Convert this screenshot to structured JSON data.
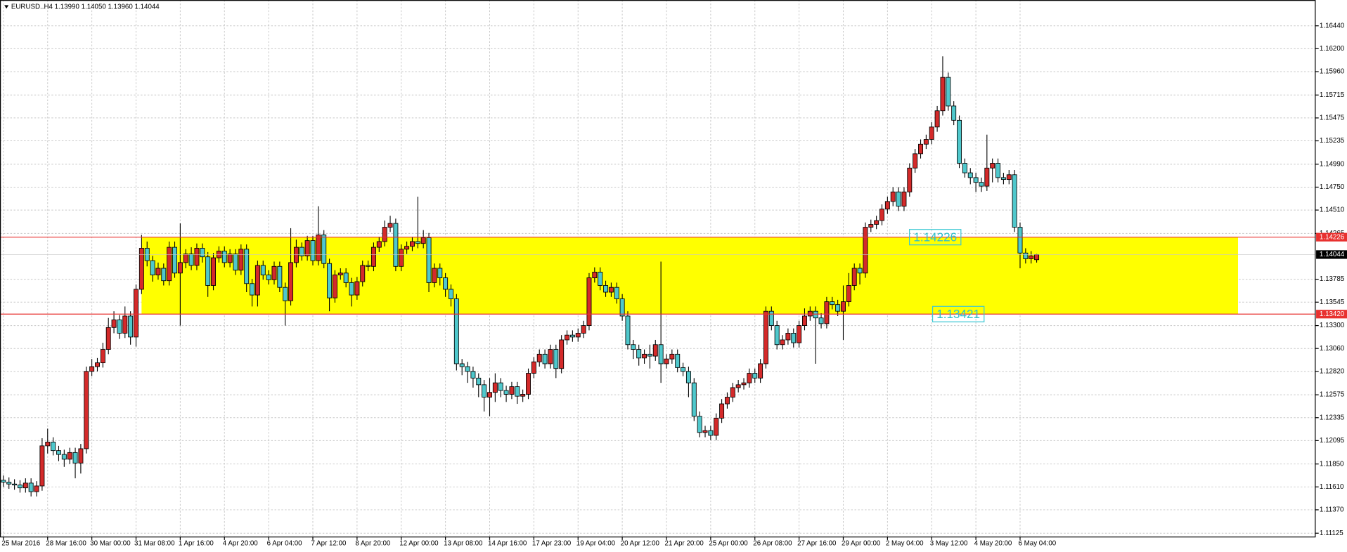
{
  "chart_data": {
    "type": "candlestick",
    "title": "EURUSD..H4  1.13990 1.14050 1.13960 1.14044",
    "up_color": "#d42a2a",
    "down_color": "#4fc8cc",
    "grid": true,
    "ylim": [
      1.1109,
      1.1671
    ],
    "yticks": [
      {
        "value": 1.1644,
        "label": "1.16440"
      },
      {
        "value": 1.162,
        "label": "1.16200"
      },
      {
        "value": 1.1596,
        "label": "1.15960"
      },
      1.15715,
      1.15475,
      1.15235,
      {
        "value": 1.1499,
        "label": "1.14990"
      },
      {
        "value": 1.1475,
        "label": "1.14750"
      },
      {
        "value": 1.1451,
        "label": "1.14510"
      },
      1.14265,
      1.13785,
      1.13545,
      {
        "value": 1.133,
        "label": "1.13300"
      },
      {
        "value": 1.1306,
        "label": "1.13060"
      },
      {
        "value": 1.1282,
        "label": "1.12820"
      },
      1.12575,
      1.12335,
      1.12095,
      {
        "value": 1.1185,
        "label": "1.11850"
      },
      {
        "value": 1.1161,
        "label": "1.11610"
      },
      {
        "value": 1.1137,
        "label": "1.11370"
      },
      1.11125
    ],
    "xticks": [
      {
        "value": 0,
        "label": "25 Mar 2016"
      },
      {
        "value": 8,
        "label": "28 Mar 16:00"
      },
      {
        "value": 16,
        "label": "30 Mar 00:00"
      },
      {
        "value": 24,
        "label": "31 Mar 08:00"
      },
      {
        "value": 32,
        "label": "1 Apr 16:00"
      },
      {
        "value": 40,
        "label": "4 Apr 20:00"
      },
      {
        "value": 48,
        "label": "6 Apr 04:00"
      },
      {
        "value": 56,
        "label": "7 Apr 12:00"
      },
      {
        "value": 64,
        "label": "8 Apr 20:00"
      },
      {
        "value": 72,
        "label": "12 Apr 00:00"
      },
      {
        "value": 80,
        "label": "13 Apr 08:00"
      },
      {
        "value": 88,
        "label": "14 Apr 16:00"
      },
      {
        "value": 96,
        "label": "17 Apr 23:00"
      },
      {
        "value": 104,
        "label": "19 Apr 04:00"
      },
      {
        "value": 112,
        "label": "20 Apr 12:00"
      },
      {
        "value": 120,
        "label": "21 Apr 20:00"
      },
      {
        "value": 128,
        "label": "25 Apr 00:00"
      },
      {
        "value": 136,
        "label": "26 Apr 08:00"
      },
      {
        "value": 144,
        "label": "27 Apr 16:00"
      },
      {
        "value": 152,
        "label": "29 Apr 00:00"
      },
      {
        "value": 160,
        "label": "2 May 04:00"
      },
      {
        "value": 168,
        "label": "3 May 12:00"
      },
      {
        "value": 176,
        "label": "4 May 20:00"
      },
      {
        "value": 184,
        "label": "6 May 04:00"
      }
    ],
    "hlines": [
      {
        "value": 1.14226,
        "label": "1.14226"
      },
      {
        "value": 1.1342,
        "label": "1.13420"
      }
    ],
    "annotations": [
      "1.14226",
      "1.13421"
    ],
    "open": [
      1.1168,
      1.1166,
      1.1164,
      1.1163,
      1.116,
      1.1165,
      1.1156,
      1.1162,
      1.1204,
      1.1208,
      1.1199,
      1.1195,
      1.119,
      1.1197,
      1.1186,
      1.1201,
      1.1282,
      1.1287,
      1.1291,
      1.1305,
      1.1328,
      1.1336,
      1.1322,
      1.134,
      1.1318,
      1.1368,
      1.1411,
      1.1398,
      1.1383,
      1.139,
      1.1377,
      1.1412,
      1.1385,
      1.1396,
      1.1405,
      1.1393,
      1.1411,
      1.1402,
      1.1372,
      1.1401,
      1.1408,
      1.1396,
      1.1405,
      1.1388,
      1.141,
      1.1374,
      1.1362,
      1.1393,
      1.1383,
      1.1378,
      1.1392,
      1.137,
      1.1356,
      1.1396,
      1.1412,
      1.1403,
      1.1419,
      1.1398,
      1.1425,
      1.1395,
      1.1359,
      1.1383,
      1.1385,
      1.1375,
      1.1362,
      1.1376,
      1.1393,
      1.1392,
      1.1412,
      1.1418,
      1.1433,
      1.1437,
      1.1392,
      1.141,
      1.1413,
      1.1418,
      1.1416,
      1.1422,
      1.1375,
      1.139,
      1.138,
      1.1368,
      1.1358,
      1.129,
      1.1287,
      1.1282,
      1.1275,
      1.1268,
      1.1255,
      1.126,
      1.127,
      1.1262,
      1.1258,
      1.1266,
      1.1256,
      1.1258,
      1.128,
      1.1292,
      1.13,
      1.129,
      1.1305,
      1.1285,
      1.1315,
      1.132,
      1.1318,
      1.1322,
      1.133,
      1.138,
      1.1386,
      1.1372,
      1.1365,
      1.137,
      1.1358,
      1.134,
      1.131,
      1.1305,
      1.1296,
      1.13,
      1.1298,
      1.131,
      1.129,
      1.1295,
      1.13,
      1.1286,
      1.1282,
      1.127,
      1.1235,
      1.1218,
      1.122,
      1.1215,
      1.1233,
      1.1248,
      1.1255,
      1.1265,
      1.1268,
      1.127,
      1.128,
      1.1275,
      1.129,
      1.1345,
      1.133,
      1.131,
      1.1315,
      1.1322,
      1.1312,
      1.133,
      1.134,
      1.1345,
      1.1338,
      1.1332,
      1.1355,
      1.1352,
      1.1345,
      1.1355,
      1.1372,
      1.139,
      1.1385,
      1.1433,
      1.1436,
      1.144,
      1.1452,
      1.146,
      1.147,
      1.1455,
      1.147,
      1.1495,
      1.151,
      1.152,
      1.1525,
      1.1538,
      1.1555,
      1.159,
      1.156,
      1.1545,
      1.15,
      1.149,
      1.1485,
      1.148,
      1.1476,
      1.1495,
      1.15,
      1.1485,
      1.1483,
      1.1488,
      1.1433,
      1.1406,
      1.14,
      1.1399
    ],
    "high": [
      1.1173,
      1.1171,
      1.1169,
      1.1168,
      1.117,
      1.117,
      1.1167,
      1.1212,
      1.1222,
      1.1213,
      1.1204,
      1.12,
      1.1202,
      1.1202,
      1.1206,
      1.1287,
      1.1295,
      1.1296,
      1.1312,
      1.1338,
      1.1345,
      1.1341,
      1.135,
      1.1345,
      1.1373,
      1.1425,
      1.1418,
      1.1403,
      1.1396,
      1.1395,
      1.1418,
      1.1418,
      1.1437,
      1.141,
      1.1412,
      1.1416,
      1.1416,
      1.1407,
      1.1406,
      1.1413,
      1.1413,
      1.141,
      1.141,
      1.1415,
      1.1415,
      1.1379,
      1.1398,
      1.1398,
      1.1388,
      1.1397,
      1.1397,
      1.1375,
      1.1432,
      1.142,
      1.1417,
      1.1424,
      1.1424,
      1.1455,
      1.143,
      1.14,
      1.1388,
      1.139,
      1.139,
      1.138,
      1.1381,
      1.1398,
      1.1398,
      1.1417,
      1.1423,
      1.144,
      1.1445,
      1.1442,
      1.1415,
      1.1418,
      1.1423,
      1.1465,
      1.143,
      1.1427,
      1.1395,
      1.1395,
      1.1385,
      1.1373,
      1.1363,
      1.1295,
      1.1292,
      1.1287,
      1.128,
      1.1273,
      1.1275,
      1.128,
      1.1275,
      1.1267,
      1.1271,
      1.1271,
      1.1263,
      1.1285,
      1.1297,
      1.1305,
      1.1305,
      1.131,
      1.131,
      1.132,
      1.1325,
      1.1325,
      1.1327,
      1.1335,
      1.1385,
      1.1391,
      1.1391,
      1.1377,
      1.1375,
      1.1375,
      1.1363,
      1.1345,
      1.1315,
      1.131,
      1.1305,
      1.131,
      1.1315,
      1.1397,
      1.13,
      1.1305,
      1.1305,
      1.1291,
      1.1287,
      1.1275,
      1.124,
      1.1225,
      1.1225,
      1.1238,
      1.1253,
      1.126,
      1.127,
      1.1273,
      1.1275,
      1.1285,
      1.1285,
      1.1295,
      1.135,
      1.135,
      1.1335,
      1.132,
      1.1327,
      1.1327,
      1.1335,
      1.1348,
      1.135,
      1.135,
      1.1343,
      1.136,
      1.136,
      1.1357,
      1.1372,
      1.1385,
      1.1395,
      1.1395,
      1.1438,
      1.1441,
      1.1445,
      1.1457,
      1.1465,
      1.1475,
      1.1475,
      1.1475,
      1.15,
      1.1515,
      1.1525,
      1.153,
      1.1543,
      1.156,
      1.1612,
      1.1595,
      1.1565,
      1.155,
      1.1505,
      1.1495,
      1.149,
      1.1485,
      1.153,
      1.1505,
      1.1505,
      1.149,
      1.1493,
      1.1493,
      1.1438,
      1.1411,
      1.1408,
      1.1405
    ],
    "low": [
      1.1161,
      1.1159,
      1.1158,
      1.1155,
      1.1155,
      1.1151,
      1.1151,
      1.1157,
      1.1196,
      1.1194,
      1.1188,
      1.1182,
      1.1185,
      1.117,
      1.1175,
      1.1196,
      1.1277,
      1.1282,
      1.1286,
      1.13,
      1.1322,
      1.1316,
      1.1317,
      1.131,
      1.1308,
      1.1363,
      1.1392,
      1.1376,
      1.1378,
      1.1372,
      1.1372,
      1.138,
      1.133,
      1.139,
      1.1388,
      1.1388,
      1.1396,
      1.136,
      1.1367,
      1.1396,
      1.1391,
      1.1391,
      1.1383,
      1.1383,
      1.1365,
      1.135,
      1.135,
      1.1378,
      1.1373,
      1.1373,
      1.1365,
      1.133,
      1.1351,
      1.1391,
      1.1398,
      1.1398,
      1.1393,
      1.1393,
      1.139,
      1.1345,
      1.1354,
      1.1378,
      1.137,
      1.135,
      1.1357,
      1.1371,
      1.1387,
      1.1387,
      1.1407,
      1.1413,
      1.1428,
      1.1387,
      1.1387,
      1.1405,
      1.1408,
      1.1411,
      1.1411,
      1.1365,
      1.137,
      1.1372,
      1.136,
      1.135,
      1.1283,
      1.1278,
      1.127,
      1.1265,
      1.1255,
      1.124,
      1.1235,
      1.125,
      1.1255,
      1.125,
      1.1253,
      1.1248,
      1.125,
      1.1253,
      1.1275,
      1.1287,
      1.1285,
      1.1285,
      1.1275,
      1.128,
      1.131,
      1.1313,
      1.1313,
      1.1317,
      1.1325,
      1.1375,
      1.1367,
      1.136,
      1.136,
      1.1353,
      1.1335,
      1.1305,
      1.1295,
      1.1288,
      1.129,
      1.1285,
      1.1293,
      1.127,
      1.1285,
      1.129,
      1.1281,
      1.1277,
      1.1255,
      1.123,
      1.1213,
      1.1213,
      1.121,
      1.121,
      1.1228,
      1.1243,
      1.125,
      1.126,
      1.1263,
      1.1265,
      1.127,
      1.127,
      1.1285,
      1.1325,
      1.1305,
      1.1305,
      1.131,
      1.1307,
      1.1307,
      1.1325,
      1.1335,
      1.129,
      1.1327,
      1.1327,
      1.1347,
      1.134,
      1.1315,
      1.135,
      1.1367,
      1.1373,
      1.138,
      1.1428,
      1.1431,
      1.1435,
      1.1447,
      1.1455,
      1.145,
      1.145,
      1.1465,
      1.149,
      1.1505,
      1.1515,
      1.152,
      1.1533,
      1.155,
      1.1555,
      1.154,
      1.1495,
      1.1485,
      1.1478,
      1.147,
      1.147,
      1.1471,
      1.148,
      1.148,
      1.1478,
      1.1478,
      1.1428,
      1.139,
      1.1395,
      1.1395,
      1.1396
    ],
    "close": [
      1.1166,
      1.1164,
      1.1163,
      1.116,
      1.1165,
      1.1156,
      1.1162,
      1.1204,
      1.1208,
      1.1199,
      1.1195,
      1.119,
      1.1197,
      1.1186,
      1.1201,
      1.1282,
      1.1287,
      1.1291,
      1.1305,
      1.1328,
      1.1336,
      1.1322,
      1.134,
      1.1318,
      1.1368,
      1.1411,
      1.1398,
      1.1383,
      1.139,
      1.1377,
      1.1412,
      1.1385,
      1.1396,
      1.1405,
      1.1393,
      1.1411,
      1.1402,
      1.1372,
      1.1401,
      1.1408,
      1.1396,
      1.1405,
      1.1388,
      1.141,
      1.1374,
      1.1362,
      1.1393,
      1.1383,
      1.1378,
      1.1392,
      1.137,
      1.1356,
      1.1396,
      1.1412,
      1.1403,
      1.1419,
      1.1398,
      1.1425,
      1.1395,
      1.1359,
      1.1383,
      1.1385,
      1.1375,
      1.1362,
      1.1376,
      1.1393,
      1.1392,
      1.1412,
      1.1418,
      1.1433,
      1.1437,
      1.1392,
      1.141,
      1.1413,
      1.1418,
      1.1416,
      1.1422,
      1.1375,
      1.139,
      1.138,
      1.1368,
      1.1358,
      1.129,
      1.1287,
      1.1282,
      1.1275,
      1.1268,
      1.1255,
      1.126,
      1.127,
      1.1262,
      1.1258,
      1.1266,
      1.1256,
      1.1258,
      1.128,
      1.1292,
      1.13,
      1.129,
      1.1305,
      1.1285,
      1.1315,
      1.132,
      1.1318,
      1.1322,
      1.133,
      1.138,
      1.1386,
      1.1372,
      1.1365,
      1.137,
      1.1358,
      1.134,
      1.131,
      1.1305,
      1.1296,
      1.13,
      1.1298,
      1.131,
      1.129,
      1.1295,
      1.13,
      1.1286,
      1.1282,
      1.127,
      1.1235,
      1.1218,
      1.122,
      1.1215,
      1.1233,
      1.1248,
      1.1255,
      1.1265,
      1.1268,
      1.127,
      1.128,
      1.1275,
      1.129,
      1.1345,
      1.133,
      1.131,
      1.1315,
      1.1322,
      1.1312,
      1.133,
      1.134,
      1.1345,
      1.1338,
      1.1332,
      1.1355,
      1.1352,
      1.1345,
      1.1355,
      1.1372,
      1.139,
      1.1385,
      1.1433,
      1.1436,
      1.144,
      1.1452,
      1.146,
      1.147,
      1.1455,
      1.147,
      1.1495,
      1.151,
      1.152,
      1.1525,
      1.1538,
      1.1555,
      1.159,
      1.156,
      1.1545,
      1.15,
      1.149,
      1.1485,
      1.148,
      1.1476,
      1.1495,
      1.15,
      1.1485,
      1.1483,
      1.1488,
      1.1433,
      1.1406,
      1.14,
      1.1403,
      1.14044
    ]
  }
}
